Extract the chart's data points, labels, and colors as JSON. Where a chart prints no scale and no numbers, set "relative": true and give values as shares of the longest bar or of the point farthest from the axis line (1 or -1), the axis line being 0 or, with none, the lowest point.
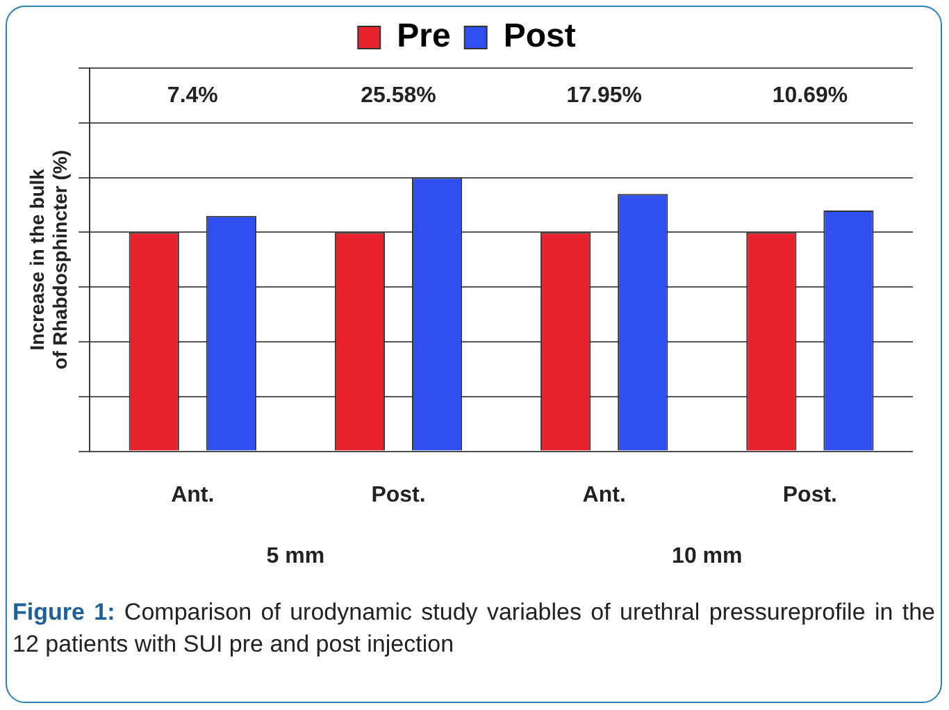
{
  "chart_data": {
    "type": "bar",
    "relative": true,
    "categories": [
      "Ant.",
      "Post.",
      "Ant.",
      "Post."
    ],
    "series": [
      {
        "name": "Pre",
        "color": "#e8222c",
        "values": [
          0.8,
          0.8,
          0.8,
          0.8
        ]
      },
      {
        "name": "Post",
        "color": "#2f4ff0",
        "values": [
          0.86,
          1,
          0.94,
          0.88
        ]
      }
    ],
    "ylabel": "Increase in the bulk of Rhabdosphincter (%)",
    "legend": "top",
    "grid": "y",
    "annotations": [
      "7.4%",
      "25.58%",
      "17.95%",
      "10.69%",
      "5 mm",
      "10 mm",
      "Figure 1: Comparison of urodynamic study variables of urethral pressureprofile in the 12 patients with SUI pre and post injection"
    ]
  }
}
